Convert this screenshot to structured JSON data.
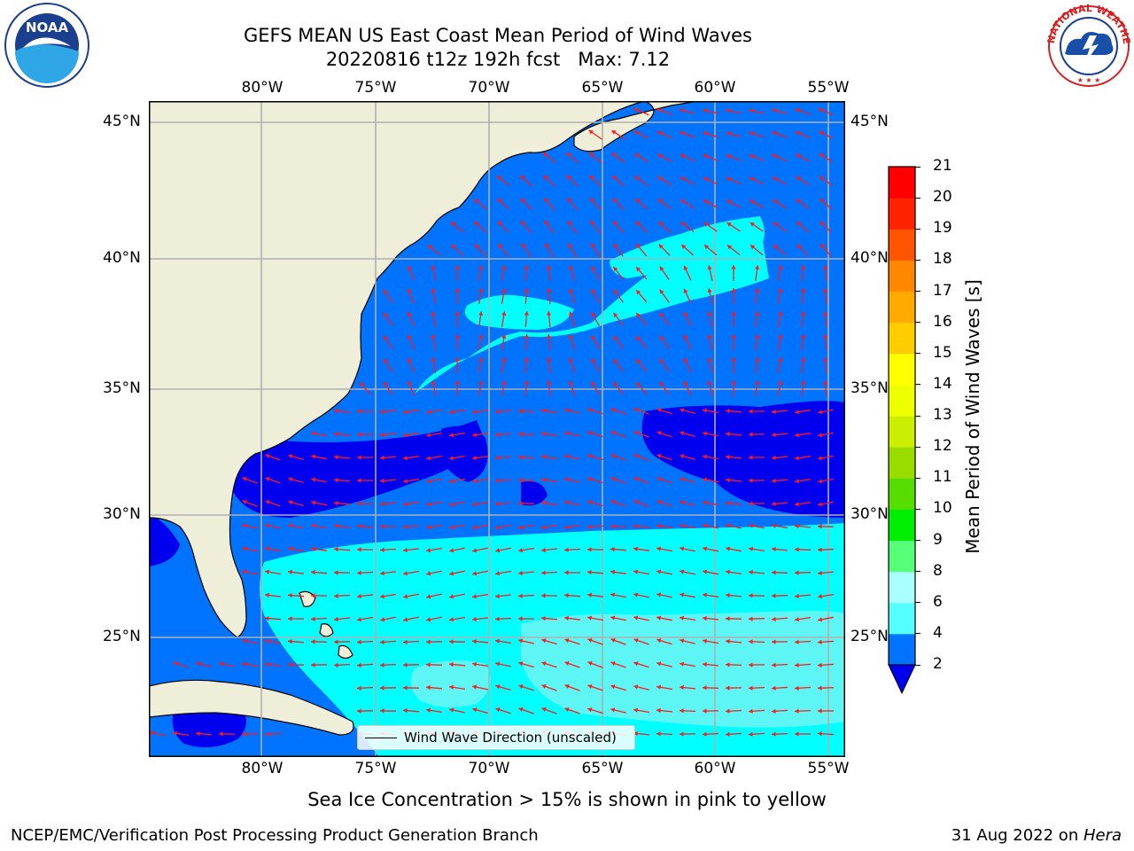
{
  "header": {
    "title_line1": "GEFS MEAN US East Coast Mean Period of Wind Waves",
    "title_line2": "20220816 t12z 192h fcst   Max: 7.12"
  },
  "logos": {
    "left": "NOAA",
    "right": "NATIONAL WEATHER SERVICE"
  },
  "map": {
    "lon_labels": [
      "80°W",
      "75°W",
      "70°W",
      "65°W",
      "60°W",
      "55°W"
    ],
    "lat_labels": [
      "45°N",
      "40°N",
      "35°N",
      "30°N",
      "25°N"
    ],
    "legend_label": "Wind Wave Direction (unscaled)",
    "colors": {
      "land": "#efeed9",
      "band_2_4": "#0073ff",
      "below_2": "#0000ee",
      "band_4_6": "#00ffff",
      "band_6_8": "#5ef5f5",
      "arrow": "#ff1a1a",
      "grid": "#b0b0b0"
    }
  },
  "colorbar": {
    "label": "Mean Period of Wind Waves [s]",
    "ticks": [
      "2",
      "4",
      "6",
      "8",
      "9",
      "10",
      "11",
      "12",
      "13",
      "14",
      "15",
      "16",
      "17",
      "18",
      "19",
      "20",
      "21"
    ],
    "colors": [
      "#0073ff",
      "#00ffff",
      "#55ffff",
      "#aaffff",
      "#55ff77",
      "#00ee00",
      "#55dd00",
      "#99dd00",
      "#ccee00",
      "#eeff00",
      "#ffff00",
      "#ffcc00",
      "#ffaa00",
      "#ff8800",
      "#ff5500",
      "#ff2200",
      "#ff0000"
    ]
  },
  "footer": {
    "note": "Sea Ice Concentration > 15% is shown in pink to yellow",
    "credit": "NCEP/EMC/Verification Post Processing Product Generation Branch",
    "date": "31 Aug 2022 on ",
    "machine": "Hera"
  }
}
